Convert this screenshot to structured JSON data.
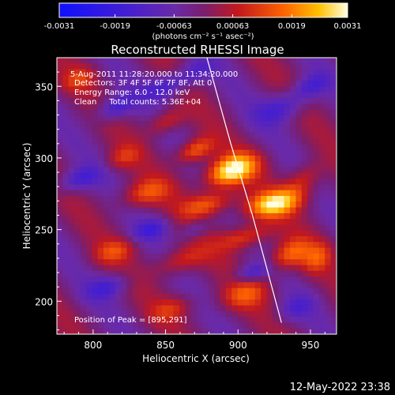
{
  "chart_data": {
    "type": "heatmap",
    "title": "Reconstructed RHESSI Image",
    "xlabel": "Heliocentric X (arcsec)",
    "ylabel": "Heliocentric Y (arcsec)",
    "xlim": [
      775,
      968
    ],
    "ylim": [
      177,
      370
    ],
    "x_ticks": [
      800,
      850,
      900,
      950
    ],
    "y_ticks": [
      200,
      250,
      300,
      350
    ],
    "colorbar": {
      "ticks": [
        "-0.0031",
        "-0.0019",
        "-0.00063",
        "0.00063",
        "0.0019",
        "0.0031"
      ],
      "unit": "(photons cm⁻² s⁻¹ asec⁻²)",
      "range": [
        -0.0031,
        0.0031
      ]
    },
    "annotations": {
      "time": "5-Aug-2011 11:28:20.000 to 11:34:20.000",
      "detectors": "Detectors: 3F 4F 5F 6F 7F 8F, Att 0",
      "energy": "Energy Range: 6.0 - 12.0 keV",
      "clean": "Clean     Total counts: 5.36E+04",
      "peak": "Position of Peak = [895,291]"
    },
    "peak_position": [
      895,
      291
    ],
    "blobs": [
      {
        "x": 895,
        "y": 291,
        "amp": 1.0,
        "sx": 14,
        "sy": 10
      },
      {
        "x": 925,
        "y": 268,
        "amp": 0.85,
        "sx": 16,
        "sy": 9
      },
      {
        "x": 870,
        "y": 305,
        "amp": 0.6,
        "sx": 10,
        "sy": 8
      },
      {
        "x": 880,
        "y": 268,
        "amp": 0.55,
        "sx": 14,
        "sy": 8
      },
      {
        "x": 905,
        "y": 245,
        "amp": 0.5,
        "sx": 14,
        "sy": 8
      },
      {
        "x": 935,
        "y": 232,
        "amp": 0.55,
        "sx": 12,
        "sy": 10
      },
      {
        "x": 945,
        "y": 285,
        "amp": 0.4,
        "sx": 10,
        "sy": 10
      },
      {
        "x": 835,
        "y": 275,
        "amp": 0.45,
        "sx": 14,
        "sy": 9
      },
      {
        "x": 850,
        "y": 325,
        "amp": 0.4,
        "sx": 10,
        "sy": 8
      },
      {
        "x": 860,
        "y": 228,
        "amp": 0.4,
        "sx": 14,
        "sy": 9
      },
      {
        "x": 905,
        "y": 205,
        "amp": 0.4,
        "sx": 14,
        "sy": 10
      },
      {
        "x": 815,
        "y": 235,
        "amp": 0.35,
        "sx": 12,
        "sy": 8
      },
      {
        "x": 790,
        "y": 355,
        "amp": 0.3,
        "sx": 10,
        "sy": 8
      },
      {
        "x": 820,
        "y": 300,
        "amp": 0.3,
        "sx": 10,
        "sy": 8
      },
      {
        "x": 955,
        "y": 230,
        "amp": 0.35,
        "sx": 8,
        "sy": 10
      },
      {
        "x": 855,
        "y": 195,
        "amp": 0.3,
        "sx": 12,
        "sy": 8
      },
      {
        "x": 815,
        "y": 335,
        "amp": -0.5,
        "sx": 10,
        "sy": 8
      },
      {
        "x": 850,
        "y": 350,
        "amp": -0.45,
        "sx": 12,
        "sy": 8
      },
      {
        "x": 790,
        "y": 285,
        "amp": -0.45,
        "sx": 12,
        "sy": 8
      },
      {
        "x": 810,
        "y": 210,
        "amp": -0.4,
        "sx": 12,
        "sy": 8
      },
      {
        "x": 840,
        "y": 250,
        "amp": -0.4,
        "sx": 10,
        "sy": 7
      },
      {
        "x": 930,
        "y": 335,
        "amp": -0.45,
        "sx": 14,
        "sy": 10
      },
      {
        "x": 950,
        "y": 350,
        "amp": -0.4,
        "sx": 10,
        "sy": 8
      },
      {
        "x": 910,
        "y": 220,
        "amp": -0.45,
        "sx": 10,
        "sy": 6
      },
      {
        "x": 940,
        "y": 195,
        "amp": -0.3,
        "sx": 10,
        "sy": 8
      },
      {
        "x": 870,
        "y": 360,
        "amp": -0.35,
        "sx": 10,
        "sy": 8
      },
      {
        "x": 870,
        "y": 250,
        "amp": -0.3,
        "sx": 8,
        "sy": 6
      }
    ],
    "limb_curve": [
      [
        878,
        372
      ],
      [
        895,
        310
      ],
      [
        910,
        260
      ],
      [
        922,
        215
      ],
      [
        930,
        185
      ]
    ]
  },
  "timestamp": "12-May-2022 23:38"
}
